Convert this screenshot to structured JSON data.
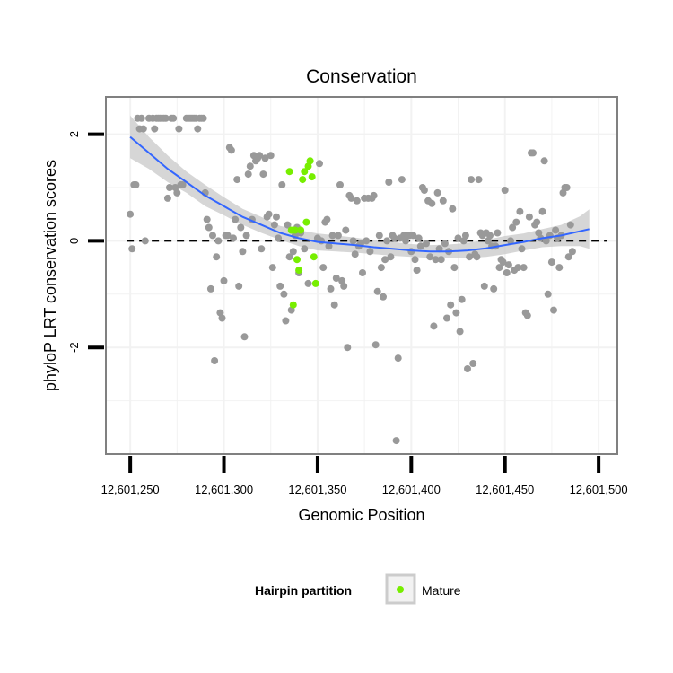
{
  "chart_data": {
    "type": "scatter",
    "title": "Conservation",
    "xlabel": "Genomic Position",
    "ylabel": "phyloP LRT conservation scores",
    "xlim": [
      12601237,
      12601510
    ],
    "ylim": [
      -4.0,
      2.7
    ],
    "x_ticks": [
      12601250,
      12601300,
      12601350,
      12601400,
      12601450,
      12601500
    ],
    "x_tick_labels": [
      "12,601,250",
      "12,601,300",
      "12,601,350",
      "12,601,400",
      "12,601,450",
      "12,601,500"
    ],
    "y_ticks": [
      -2,
      0,
      2
    ],
    "y_tick_labels": [
      "-2",
      "0",
      "2"
    ],
    "grid": true,
    "reference_line": {
      "y": 0,
      "style": "dashed",
      "color": "#000000"
    },
    "colors": {
      "background_points": "#999999",
      "mature": "#77ee00",
      "smooth_line": "#3366ff",
      "confidence_band": "#c8c8c8",
      "panel_border": "#808080",
      "grid": "#f2f2f2"
    },
    "legend": {
      "title": "Hairpin partition",
      "placement": "bottom",
      "entries": [
        {
          "label": "Mature",
          "color": "#77ee00"
        }
      ]
    },
    "series": [
      {
        "color": "#999999",
        "points": [
          [
            12601250,
            0.5
          ],
          [
            12601251,
            -0.15
          ],
          [
            12601252,
            1.05
          ],
          [
            12601253,
            1.05
          ],
          [
            12601254,
            2.3
          ],
          [
            12601255,
            2.1
          ],
          [
            12601256,
            2.3
          ],
          [
            12601257,
            2.1
          ],
          [
            12601258,
            0.0
          ],
          [
            12601260,
            2.3
          ],
          [
            12601262,
            2.3
          ],
          [
            12601263,
            2.1
          ],
          [
            12601264,
            2.3
          ],
          [
            12601265,
            2.3
          ],
          [
            12601266,
            2.3
          ],
          [
            12601267,
            2.3
          ],
          [
            12601268,
            2.3
          ],
          [
            12601269,
            2.3
          ],
          [
            12601270,
            0.8
          ],
          [
            12601271,
            1.0
          ],
          [
            12601272,
            2.3
          ],
          [
            12601273,
            2.3
          ],
          [
            12601274,
            1.0
          ],
          [
            12601275,
            0.9
          ],
          [
            12601276,
            2.1
          ],
          [
            12601277,
            1.05
          ],
          [
            12601278,
            1.05
          ],
          [
            12601280,
            2.3
          ],
          [
            12601281,
            2.3
          ],
          [
            12601282,
            2.3
          ],
          [
            12601283,
            2.3
          ],
          [
            12601284,
            2.3
          ],
          [
            12601285,
            2.3
          ],
          [
            12601286,
            2.1
          ],
          [
            12601287,
            2.3
          ],
          [
            12601288,
            2.3
          ],
          [
            12601289,
            2.3
          ],
          [
            12601290,
            0.9
          ],
          [
            12601291,
            0.4
          ],
          [
            12601292,
            0.25
          ],
          [
            12601293,
            -0.9
          ],
          [
            12601294,
            0.1
          ],
          [
            12601295,
            -2.25
          ],
          [
            12601296,
            -0.3
          ],
          [
            12601297,
            0.0
          ],
          [
            12601298,
            -1.35
          ],
          [
            12601299,
            -1.45
          ],
          [
            12601300,
            -0.75
          ],
          [
            12601301,
            0.1
          ],
          [
            12601302,
            0.1
          ],
          [
            12601303,
            1.75
          ],
          [
            12601304,
            1.7
          ],
          [
            12601305,
            0.05
          ],
          [
            12601306,
            0.4
          ],
          [
            12601307,
            1.15
          ],
          [
            12601308,
            -0.85
          ],
          [
            12601309,
            0.25
          ],
          [
            12601310,
            -0.2
          ],
          [
            12601311,
            -1.8
          ],
          [
            12601312,
            0.1
          ],
          [
            12601313,
            1.25
          ],
          [
            12601314,
            1.4
          ],
          [
            12601315,
            0.4
          ],
          [
            12601316,
            1.6
          ],
          [
            12601317,
            1.5
          ],
          [
            12601318,
            1.55
          ],
          [
            12601319,
            1.6
          ],
          [
            12601320,
            -0.15
          ],
          [
            12601321,
            1.25
          ],
          [
            12601322,
            1.55
          ],
          [
            12601323,
            0.45
          ],
          [
            12601324,
            0.5
          ],
          [
            12601325,
            1.6
          ],
          [
            12601326,
            -0.5
          ],
          [
            12601327,
            0.3
          ],
          [
            12601328,
            0.45
          ],
          [
            12601329,
            0.05
          ],
          [
            12601330,
            -0.85
          ],
          [
            12601331,
            1.05
          ],
          [
            12601332,
            -1.0
          ],
          [
            12601333,
            -1.5
          ],
          [
            12601334,
            0.3
          ],
          [
            12601335,
            -0.3
          ],
          [
            12601336,
            -1.3
          ],
          [
            12601337,
            -0.2
          ],
          [
            12601338,
            0.1
          ],
          [
            12601339,
            0.25
          ],
          [
            12601340,
            -0.6
          ],
          [
            12601341,
            0.15
          ],
          [
            12601343,
            -0.15
          ],
          [
            12601345,
            -0.8
          ],
          [
            12601350,
            0.05
          ],
          [
            12601351,
            1.45
          ],
          [
            12601352,
            0.0
          ],
          [
            12601353,
            -0.5
          ],
          [
            12601354,
            0.35
          ],
          [
            12601355,
            0.4
          ],
          [
            12601356,
            -0.1
          ],
          [
            12601357,
            -0.9
          ],
          [
            12601358,
            0.1
          ],
          [
            12601359,
            -1.2
          ],
          [
            12601360,
            -0.7
          ],
          [
            12601361,
            0.1
          ],
          [
            12601362,
            1.05
          ],
          [
            12601363,
            -0.75
          ],
          [
            12601364,
            -0.85
          ],
          [
            12601365,
            0.2
          ],
          [
            12601366,
            -2.0
          ],
          [
            12601367,
            0.85
          ],
          [
            12601368,
            0.8
          ],
          [
            12601369,
            0.0
          ],
          [
            12601370,
            -0.25
          ],
          [
            12601371,
            0.75
          ],
          [
            12601372,
            -0.1
          ],
          [
            12601373,
            -0.05
          ],
          [
            12601374,
            -0.6
          ],
          [
            12601375,
            0.8
          ],
          [
            12601376,
            0.0
          ],
          [
            12601377,
            0.8
          ],
          [
            12601378,
            -0.2
          ],
          [
            12601379,
            0.8
          ],
          [
            12601380,
            0.85
          ],
          [
            12601381,
            -1.95
          ],
          [
            12601382,
            -0.95
          ],
          [
            12601383,
            0.1
          ],
          [
            12601384,
            -0.5
          ],
          [
            12601385,
            -1.05
          ],
          [
            12601386,
            -0.35
          ],
          [
            12601387,
            0.0
          ],
          [
            12601388,
            1.1
          ],
          [
            12601389,
            -0.3
          ],
          [
            12601390,
            0.1
          ],
          [
            12601391,
            0.05
          ],
          [
            12601392,
            -3.75
          ],
          [
            12601393,
            -2.2
          ],
          [
            12601394,
            0.05
          ],
          [
            12601395,
            1.15
          ],
          [
            12601396,
            0.1
          ],
          [
            12601397,
            0.0
          ],
          [
            12601398,
            0.1
          ],
          [
            12601399,
            0.1
          ],
          [
            12601400,
            -0.2
          ],
          [
            12601401,
            0.1
          ],
          [
            12601402,
            -0.35
          ],
          [
            12601403,
            -0.55
          ],
          [
            12601404,
            0.05
          ],
          [
            12601405,
            -0.1
          ],
          [
            12601406,
            1.0
          ],
          [
            12601407,
            0.95
          ],
          [
            12601408,
            -0.05
          ],
          [
            12601409,
            0.75
          ],
          [
            12601410,
            -0.3
          ],
          [
            12601411,
            0.7
          ],
          [
            12601412,
            -1.6
          ],
          [
            12601413,
            -0.35
          ],
          [
            12601414,
            0.9
          ],
          [
            12601415,
            -0.15
          ],
          [
            12601416,
            -0.35
          ],
          [
            12601417,
            0.75
          ],
          [
            12601418,
            -0.05
          ],
          [
            12601419,
            -1.45
          ],
          [
            12601420,
            -0.2
          ],
          [
            12601421,
            -1.2
          ],
          [
            12601422,
            0.6
          ],
          [
            12601423,
            -0.5
          ],
          [
            12601424,
            -1.35
          ],
          [
            12601425,
            0.05
          ],
          [
            12601426,
            -1.7
          ],
          [
            12601427,
            -1.1
          ],
          [
            12601428,
            0.0
          ],
          [
            12601429,
            0.1
          ],
          [
            12601430,
            -2.4
          ],
          [
            12601431,
            -0.3
          ],
          [
            12601432,
            1.15
          ],
          [
            12601433,
            -2.3
          ],
          [
            12601434,
            -0.25
          ],
          [
            12601435,
            -0.3
          ],
          [
            12601436,
            1.15
          ],
          [
            12601437,
            0.15
          ],
          [
            12601438,
            0.1
          ],
          [
            12601439,
            -0.85
          ],
          [
            12601440,
            0.15
          ],
          [
            12601441,
            0.0
          ],
          [
            12601442,
            0.1
          ],
          [
            12601443,
            -0.1
          ],
          [
            12601444,
            -0.9
          ],
          [
            12601445,
            -0.1
          ],
          [
            12601446,
            0.15
          ],
          [
            12601447,
            -0.5
          ],
          [
            12601448,
            -0.35
          ],
          [
            12601449,
            -0.4
          ],
          [
            12601450,
            0.95
          ],
          [
            12601451,
            -0.6
          ],
          [
            12601452,
            -0.45
          ],
          [
            12601453,
            0.0
          ],
          [
            12601454,
            0.25
          ],
          [
            12601455,
            -0.55
          ],
          [
            12601456,
            0.35
          ],
          [
            12601457,
            -0.5
          ],
          [
            12601458,
            0.55
          ],
          [
            12601459,
            -0.15
          ],
          [
            12601460,
            -0.5
          ],
          [
            12601461,
            -1.35
          ],
          [
            12601462,
            -1.4
          ],
          [
            12601463,
            0.45
          ],
          [
            12601464,
            1.65
          ],
          [
            12601465,
            1.65
          ],
          [
            12601466,
            0.3
          ],
          [
            12601467,
            0.35
          ],
          [
            12601468,
            0.15
          ],
          [
            12601469,
            0.05
          ],
          [
            12601470,
            0.55
          ],
          [
            12601471,
            1.5
          ],
          [
            12601472,
            0.0
          ],
          [
            12601473,
            -1.0
          ],
          [
            12601474,
            0.1
          ],
          [
            12601475,
            -0.4
          ],
          [
            12601476,
            -1.3
          ],
          [
            12601477,
            0.2
          ],
          [
            12601478,
            0.05
          ],
          [
            12601479,
            -0.5
          ],
          [
            12601480,
            0.1
          ],
          [
            12601481,
            0.9
          ],
          [
            12601482,
            1.0
          ],
          [
            12601483,
            1.0
          ],
          [
            12601484,
            -0.3
          ],
          [
            12601485,
            0.3
          ],
          [
            12601486,
            -0.2
          ]
        ]
      },
      {
        "name": "Mature",
        "color": "#77ee00",
        "points": [
          [
            12601335,
            1.3
          ],
          [
            12601336,
            0.2
          ],
          [
            12601337,
            -1.2
          ],
          [
            12601338,
            0.2
          ],
          [
            12601339,
            -0.35
          ],
          [
            12601340,
            -0.55
          ],
          [
            12601341,
            0.2
          ],
          [
            12601342,
            1.15
          ],
          [
            12601343,
            1.3
          ],
          [
            12601344,
            0.35
          ],
          [
            12601345,
            1.4
          ],
          [
            12601346,
            1.5
          ],
          [
            12601347,
            1.2
          ],
          [
            12601348,
            -0.3
          ],
          [
            12601349,
            -0.8
          ]
        ]
      }
    ],
    "smooth": {
      "method": "loess",
      "color": "#3366ff",
      "x": [
        12601250,
        12601260,
        12601270,
        12601280,
        12601290,
        12601300,
        12601310,
        12601320,
        12601330,
        12601340,
        12601350,
        12601360,
        12601370,
        12601380,
        12601390,
        12601400,
        12601410,
        12601420,
        12601430,
        12601440,
        12601450,
        12601460,
        12601470,
        12601480,
        12601490,
        12601495
      ],
      "y": [
        1.95,
        1.65,
        1.35,
        1.1,
        0.85,
        0.65,
        0.45,
        0.3,
        0.15,
        0.05,
        -0.02,
        -0.05,
        -0.08,
        -0.12,
        -0.15,
        -0.18,
        -0.2,
        -0.2,
        -0.18,
        -0.14,
        -0.08,
        -0.02,
        0.05,
        0.1,
        0.18,
        0.22
      ],
      "lower": [
        1.55,
        1.35,
        1.1,
        0.9,
        0.65,
        0.48,
        0.3,
        0.15,
        0.02,
        -0.1,
        -0.18,
        -0.2,
        -0.22,
        -0.25,
        -0.28,
        -0.3,
        -0.32,
        -0.33,
        -0.32,
        -0.3,
        -0.25,
        -0.18,
        -0.12,
        -0.1,
        -0.1,
        -0.15
      ],
      "upper": [
        2.35,
        1.95,
        1.6,
        1.3,
        1.05,
        0.82,
        0.6,
        0.45,
        0.28,
        0.2,
        0.14,
        0.1,
        0.06,
        0.01,
        -0.02,
        -0.06,
        -0.08,
        -0.07,
        -0.04,
        0.02,
        0.09,
        0.14,
        0.22,
        0.3,
        0.46,
        0.59
      ]
    }
  }
}
